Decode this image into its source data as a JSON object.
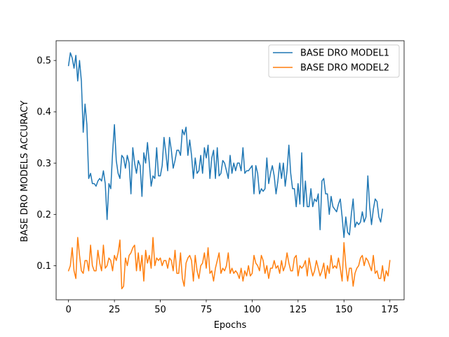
{
  "chart_data": {
    "type": "line",
    "title": "",
    "xlabel": "Epochs",
    "ylabel": "BASE DRO MODELS ACCURACY",
    "xlim": [
      -6.75,
      182.75
    ],
    "ylim": [
      0.0335,
      0.5385
    ],
    "xticks": [
      0,
      25,
      50,
      75,
      100,
      125,
      150,
      175
    ],
    "yticks": [
      0.1,
      0.2,
      0.3,
      0.4,
      0.5
    ],
    "ytick_labels": [
      "0.1",
      "0.2",
      "0.3",
      "0.4",
      "0.5"
    ],
    "grid": false,
    "legend_position": "upper right",
    "series": [
      {
        "name": "BASE DRO MODEL1",
        "color": "#1f77b4",
        "values": [
          0.49,
          0.515,
          0.505,
          0.485,
          0.51,
          0.46,
          0.5,
          0.46,
          0.36,
          0.415,
          0.375,
          0.27,
          0.28,
          0.26,
          0.26,
          0.255,
          0.265,
          0.27,
          0.265,
          0.285,
          0.26,
          0.19,
          0.26,
          0.25,
          0.32,
          0.375,
          0.305,
          0.28,
          0.27,
          0.315,
          0.31,
          0.29,
          0.315,
          0.3,
          0.24,
          0.33,
          0.3,
          0.28,
          0.305,
          0.295,
          0.235,
          0.32,
          0.3,
          0.34,
          0.3,
          0.255,
          0.275,
          0.27,
          0.33,
          0.275,
          0.275,
          0.295,
          0.35,
          0.32,
          0.285,
          0.35,
          0.325,
          0.29,
          0.305,
          0.325,
          0.325,
          0.315,
          0.365,
          0.355,
          0.37,
          0.315,
          0.345,
          0.315,
          0.27,
          0.31,
          0.28,
          0.285,
          0.315,
          0.28,
          0.33,
          0.31,
          0.335,
          0.27,
          0.31,
          0.325,
          0.27,
          0.33,
          0.275,
          0.28,
          0.305,
          0.3,
          0.285,
          0.27,
          0.315,
          0.28,
          0.3,
          0.285,
          0.3,
          0.3,
          0.285,
          0.33,
          0.28,
          0.285,
          0.285,
          0.29,
          0.295,
          0.24,
          0.295,
          0.28,
          0.24,
          0.25,
          0.245,
          0.25,
          0.31,
          0.26,
          0.28,
          0.295,
          0.275,
          0.24,
          0.265,
          0.3,
          0.27,
          0.3,
          0.255,
          0.285,
          0.335,
          0.28,
          0.25,
          0.25,
          0.215,
          0.26,
          0.22,
          0.32,
          0.215,
          0.265,
          0.215,
          0.215,
          0.25,
          0.215,
          0.23,
          0.225,
          0.24,
          0.17,
          0.265,
          0.27,
          0.24,
          0.24,
          0.2,
          0.235,
          0.215,
          0.21,
          0.205,
          0.22,
          0.23,
          0.195,
          0.155,
          0.195,
          0.165,
          0.16,
          0.2,
          0.23,
          0.175,
          0.185,
          0.18,
          0.185,
          0.205,
          0.185,
          0.195,
          0.275,
          0.215,
          0.18,
          0.21,
          0.23,
          0.225,
          0.195,
          0.185,
          0.21
        ]
      },
      {
        "name": "BASE DRO MODEL2",
        "color": "#ff7f0e",
        "values": [
          0.09,
          0.1,
          0.135,
          0.09,
          0.075,
          0.155,
          0.12,
          0.09,
          0.085,
          0.11,
          0.11,
          0.09,
          0.14,
          0.1,
          0.09,
          0.09,
          0.13,
          0.105,
          0.09,
          0.14,
          0.095,
          0.1,
          0.115,
          0.11,
          0.09,
          0.12,
          0.11,
          0.125,
          0.15,
          0.055,
          0.06,
          0.115,
          0.1,
          0.12,
          0.125,
          0.135,
          0.14,
          0.09,
          0.125,
          0.09,
          0.12,
          0.07,
          0.13,
          0.105,
          0.12,
          0.095,
          0.155,
          0.1,
          0.115,
          0.11,
          0.115,
          0.1,
          0.11,
          0.11,
          0.095,
          0.115,
          0.11,
          0.09,
          0.13,
          0.085,
          0.085,
          0.125,
          0.075,
          0.06,
          0.105,
          0.115,
          0.12,
          0.11,
          0.07,
          0.12,
          0.09,
          0.075,
          0.1,
          0.105,
          0.125,
          0.095,
          0.135,
          0.085,
          0.09,
          0.07,
          0.095,
          0.11,
          0.125,
          0.085,
          0.095,
          0.09,
          0.1,
          0.125,
          0.085,
          0.095,
          0.085,
          0.09,
          0.085,
          0.075,
          0.095,
          0.07,
          0.09,
          0.08,
          0.1,
          0.08,
          0.085,
          0.12,
          0.105,
          0.1,
          0.09,
          0.12,
          0.11,
          0.085,
          0.1,
          0.075,
          0.095,
          0.095,
          0.11,
          0.095,
          0.1,
          0.085,
          0.11,
          0.09,
          0.1,
          0.125,
          0.105,
          0.09,
          0.09,
          0.115,
          0.12,
          0.08,
          0.1,
          0.095,
          0.1,
          0.11,
          0.08,
          0.115,
          0.095,
          0.08,
          0.09,
          0.11,
          0.095,
          0.08,
          0.09,
          0.105,
          0.075,
          0.1,
          0.085,
          0.12,
          0.095,
          0.1,
          0.095,
          0.115,
          0.095,
          0.07,
          0.145,
          0.1,
          0.07,
          0.095,
          0.095,
          0.06,
          0.085,
          0.095,
          0.1,
          0.115,
          0.12,
          0.1,
          0.115,
          0.11,
          0.1,
          0.09,
          0.12,
          0.085,
          0.09,
          0.075,
          0.075,
          0.1,
          0.07,
          0.09,
          0.08,
          0.11
        ]
      }
    ]
  }
}
